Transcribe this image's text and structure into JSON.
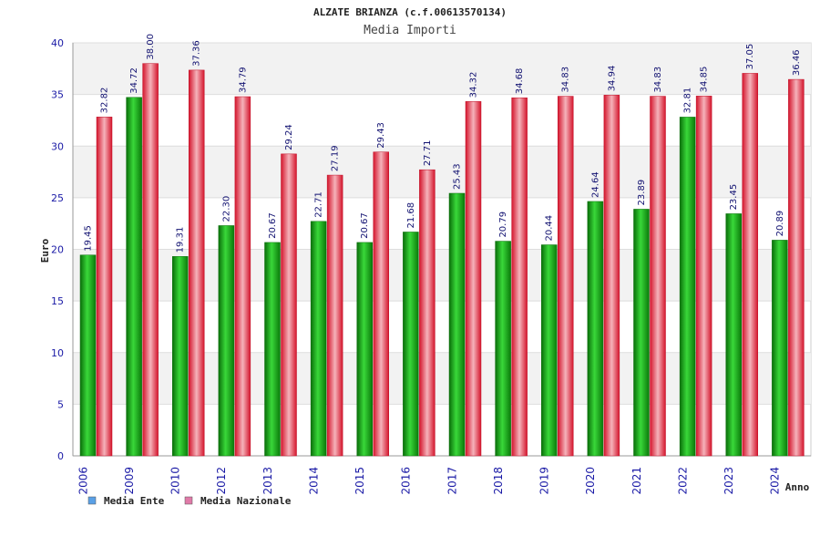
{
  "chart_data": {
    "type": "bar",
    "title": "ALZATE BRIANZA (c.f.00613570134)",
    "subtitle": "Media Importi",
    "xlabel": "Anno",
    "ylabel": "Euro",
    "ylim": [
      0,
      40
    ],
    "yticks": [
      0,
      5,
      10,
      15,
      20,
      25,
      30,
      35,
      40
    ],
    "grid": true,
    "legend_position": "bottom-left",
    "categories": [
      "2006",
      "2009",
      "2010",
      "2012",
      "2013",
      "2014",
      "2015",
      "2016",
      "2017",
      "2018",
      "2019",
      "2020",
      "2021",
      "2022",
      "2023",
      "2024"
    ],
    "series": [
      {
        "name": "Media Ente",
        "legend_color": "#5aa0e6",
        "bar_color": "#1fa01f",
        "values": [
          19.45,
          34.72,
          19.31,
          22.3,
          20.67,
          22.71,
          20.67,
          21.68,
          25.43,
          20.79,
          20.44,
          24.64,
          23.89,
          32.81,
          23.45,
          20.89
        ],
        "labels": [
          "19.45",
          "34.72",
          "19.31",
          "22.30",
          "20.67",
          "22.71",
          "20.67",
          "21.68",
          "25.43",
          "20.79",
          "20.44",
          "24.64",
          "23.89",
          "32.81",
          "23.45",
          "20.89"
        ]
      },
      {
        "name": "Media Nazionale",
        "legend_color": "#e07aa8",
        "bar_color": "#e0203a",
        "values": [
          32.82,
          38.0,
          37.36,
          34.79,
          29.24,
          27.19,
          29.43,
          27.71,
          34.32,
          34.68,
          34.83,
          34.94,
          34.83,
          34.85,
          37.05,
          36.46
        ],
        "labels": [
          "32.82",
          "38.00",
          "37.36",
          "34.79",
          "29.24",
          "27.19",
          "29.43",
          "27.71",
          "34.32",
          "34.68",
          "34.83",
          "34.94",
          "34.83",
          "34.85",
          "37.05",
          "36.46"
        ]
      }
    ]
  }
}
